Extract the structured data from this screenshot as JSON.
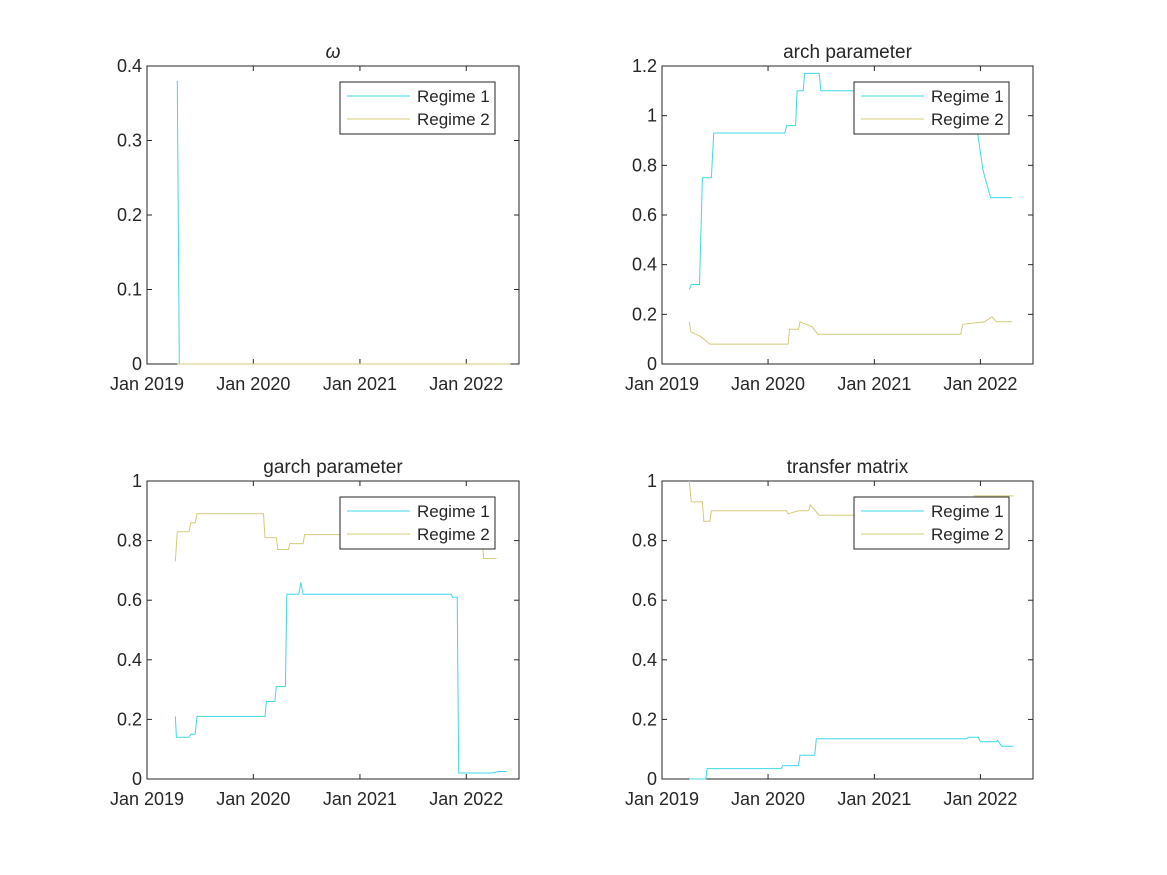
{
  "chart_data": [
    {
      "type": "line",
      "title": "ω",
      "xlabel": "",
      "ylabel": "",
      "xlim": [
        "2019-01-01",
        "2022-07-01"
      ],
      "ylim": [
        0,
        0.4
      ],
      "xticks": [
        "Jan 2019",
        "Jan 2020",
        "Jan 2021",
        "Jan 2022"
      ],
      "yticks": [
        "0",
        "0.1",
        "0.2",
        "0.3",
        "0.4"
      ],
      "grid": false,
      "legend": "top-right",
      "series": [
        {
          "name": "Regime 1",
          "color": "#3fd9e6",
          "points": [
            [
              "2019-04-15",
              0.38
            ],
            [
              "2019-04-22",
              0.0
            ],
            [
              "2022-06-01",
              0.0
            ]
          ]
        },
        {
          "name": "Regime 2",
          "color": "#d4cb7a",
          "points": [
            [
              "2019-04-15",
              0.0
            ],
            [
              "2022-06-01",
              0.0
            ]
          ]
        }
      ]
    },
    {
      "type": "line",
      "title": "arch parameter",
      "xlabel": "",
      "ylabel": "",
      "xlim": [
        "2019-01-01",
        "2022-07-01"
      ],
      "ylim": [
        0,
        1.2
      ],
      "xticks": [
        "Jan 2019",
        "Jan 2020",
        "Jan 2021",
        "Jan 2022"
      ],
      "yticks": [
        "0",
        "0.2",
        "0.4",
        "0.6",
        "0.8",
        "1",
        "1.2"
      ],
      "grid": false,
      "legend": "top-right",
      "series": [
        {
          "name": "Regime 1",
          "color": "#3fd9e6",
          "points": [
            [
              "2019-04-05",
              0.3
            ],
            [
              "2019-04-12",
              0.32
            ],
            [
              "2019-05-10",
              0.32
            ],
            [
              "2019-05-20",
              0.75
            ],
            [
              "2019-06-20",
              0.75
            ],
            [
              "2019-06-28",
              0.93
            ],
            [
              "2020-02-28",
              0.93
            ],
            [
              "2020-03-05",
              0.96
            ],
            [
              "2020-04-05",
              0.96
            ],
            [
              "2020-04-10",
              1.1
            ],
            [
              "2020-05-01",
              1.1
            ],
            [
              "2020-05-06",
              1.17
            ],
            [
              "2020-06-25",
              1.17
            ],
            [
              "2020-07-01",
              1.1
            ],
            [
              "2021-12-01",
              1.1
            ],
            [
              "2021-12-20",
              0.95
            ],
            [
              "2022-01-10",
              0.78
            ],
            [
              "2022-02-05",
              0.67
            ],
            [
              "2022-04-20",
              0.67
            ]
          ]
        },
        {
          "name": "Regime 2",
          "color": "#d4cb7a",
          "points": [
            [
              "2019-04-05",
              0.17
            ],
            [
              "2019-04-10",
              0.13
            ],
            [
              "2019-05-15",
              0.11
            ],
            [
              "2019-06-15",
              0.08
            ],
            [
              "2020-03-10",
              0.08
            ],
            [
              "2020-03-15",
              0.14
            ],
            [
              "2020-04-15",
              0.14
            ],
            [
              "2020-04-20",
              0.17
            ],
            [
              "2020-06-01",
              0.15
            ],
            [
              "2020-06-20",
              0.12
            ],
            [
              "2021-10-25",
              0.12
            ],
            [
              "2021-11-01",
              0.16
            ],
            [
              "2022-01-15",
              0.17
            ],
            [
              "2022-02-10",
              0.19
            ],
            [
              "2022-02-25",
              0.17
            ],
            [
              "2022-04-20",
              0.17
            ]
          ]
        }
      ]
    },
    {
      "type": "line",
      "title": "garch parameter",
      "xlabel": "",
      "ylabel": "",
      "xlim": [
        "2019-01-01",
        "2022-07-01"
      ],
      "ylim": [
        0,
        1
      ],
      "xticks": [
        "Jan 2019",
        "Jan 2020",
        "Jan 2021",
        "Jan 2022"
      ],
      "yticks": [
        "0",
        "0.2",
        "0.4",
        "0.6",
        "0.8",
        "1"
      ],
      "grid": false,
      "legend": "top-right",
      "series": [
        {
          "name": "Regime 1",
          "color": "#3fd9e6",
          "points": [
            [
              "2019-04-08",
              0.21
            ],
            [
              "2019-04-12",
              0.14
            ],
            [
              "2019-05-25",
              0.14
            ],
            [
              "2019-06-01",
              0.15
            ],
            [
              "2019-06-15",
              0.15
            ],
            [
              "2019-06-22",
              0.21
            ],
            [
              "2020-02-10",
              0.21
            ],
            [
              "2020-02-15",
              0.26
            ],
            [
              "2020-03-15",
              0.26
            ],
            [
              "2020-03-20",
              0.31
            ],
            [
              "2020-04-20",
              0.31
            ],
            [
              "2020-04-25",
              0.62
            ],
            [
              "2020-06-05",
              0.62
            ],
            [
              "2020-06-12",
              0.66
            ],
            [
              "2020-06-20",
              0.62
            ],
            [
              "2021-11-10",
              0.62
            ],
            [
              "2021-11-15",
              0.61
            ],
            [
              "2021-12-01",
              0.61
            ],
            [
              "2021-12-06",
              0.02
            ],
            [
              "2022-04-01",
              0.02
            ],
            [
              "2022-04-20",
              0.025
            ],
            [
              "2022-05-20",
              0.025
            ]
          ]
        },
        {
          "name": "Regime 2",
          "color": "#d4cb7a",
          "points": [
            [
              "2019-04-08",
              0.73
            ],
            [
              "2019-04-15",
              0.83
            ],
            [
              "2019-05-25",
              0.83
            ],
            [
              "2019-06-01",
              0.86
            ],
            [
              "2019-06-15",
              0.86
            ],
            [
              "2019-06-22",
              0.89
            ],
            [
              "2020-02-05",
              0.89
            ],
            [
              "2020-02-10",
              0.81
            ],
            [
              "2020-03-20",
              0.81
            ],
            [
              "2020-03-25",
              0.77
            ],
            [
              "2020-05-01",
              0.77
            ],
            [
              "2020-05-05",
              0.79
            ],
            [
              "2020-06-20",
              0.79
            ],
            [
              "2020-06-25",
              0.82
            ],
            [
              "2022-02-25",
              0.82
            ],
            [
              "2022-03-01",
              0.74
            ],
            [
              "2022-04-15",
              0.74
            ]
          ]
        }
      ]
    },
    {
      "type": "line",
      "title": "transfer matrix",
      "xlabel": "",
      "ylabel": "",
      "xlim": [
        "2019-01-01",
        "2022-07-01"
      ],
      "ylim": [
        0,
        1
      ],
      "xticks": [
        "Jan 2019",
        "Jan 2020",
        "Jan 2021",
        "Jan 2022"
      ],
      "yticks": [
        "0",
        "0.2",
        "0.4",
        "0.6",
        "0.8",
        "1"
      ],
      "grid": false,
      "legend": "top-right",
      "series": [
        {
          "name": "Regime 1",
          "color": "#3fd9e6",
          "points": [
            [
              "2019-04-05",
              0.0
            ],
            [
              "2019-06-01",
              0.0
            ],
            [
              "2019-06-05",
              0.035
            ],
            [
              "2020-02-15",
              0.035
            ],
            [
              "2020-02-20",
              0.045
            ],
            [
              "2020-04-15",
              0.045
            ],
            [
              "2020-04-20",
              0.08
            ],
            [
              "2020-06-10",
              0.08
            ],
            [
              "2020-06-15",
              0.135
            ],
            [
              "2021-11-15",
              0.135
            ],
            [
              "2021-11-20",
              0.14
            ],
            [
              "2021-12-25",
              0.14
            ],
            [
              "2022-01-01",
              0.125
            ],
            [
              "2022-02-25",
              0.125
            ],
            [
              "2022-03-01",
              0.13
            ],
            [
              "2022-03-15",
              0.11
            ],
            [
              "2022-04-25",
              0.11
            ]
          ]
        },
        {
          "name": "Regime 2",
          "color": "#d4cb7a",
          "points": [
            [
              "2019-04-05",
              1.0
            ],
            [
              "2019-04-12",
              0.93
            ],
            [
              "2019-05-20",
              0.93
            ],
            [
              "2019-05-25",
              0.865
            ],
            [
              "2019-06-15",
              0.865
            ],
            [
              "2019-06-20",
              0.9
            ],
            [
              "2020-03-05",
              0.9
            ],
            [
              "2020-03-10",
              0.89
            ],
            [
              "2020-04-15",
              0.9
            ],
            [
              "2020-05-20",
              0.9
            ],
            [
              "2020-05-25",
              0.92
            ],
            [
              "2020-06-25",
              0.885
            ],
            [
              "2021-12-01",
              0.885
            ],
            [
              "2021-12-10",
              0.95
            ],
            [
              "2022-04-25",
              0.95
            ]
          ]
        }
      ]
    }
  ]
}
